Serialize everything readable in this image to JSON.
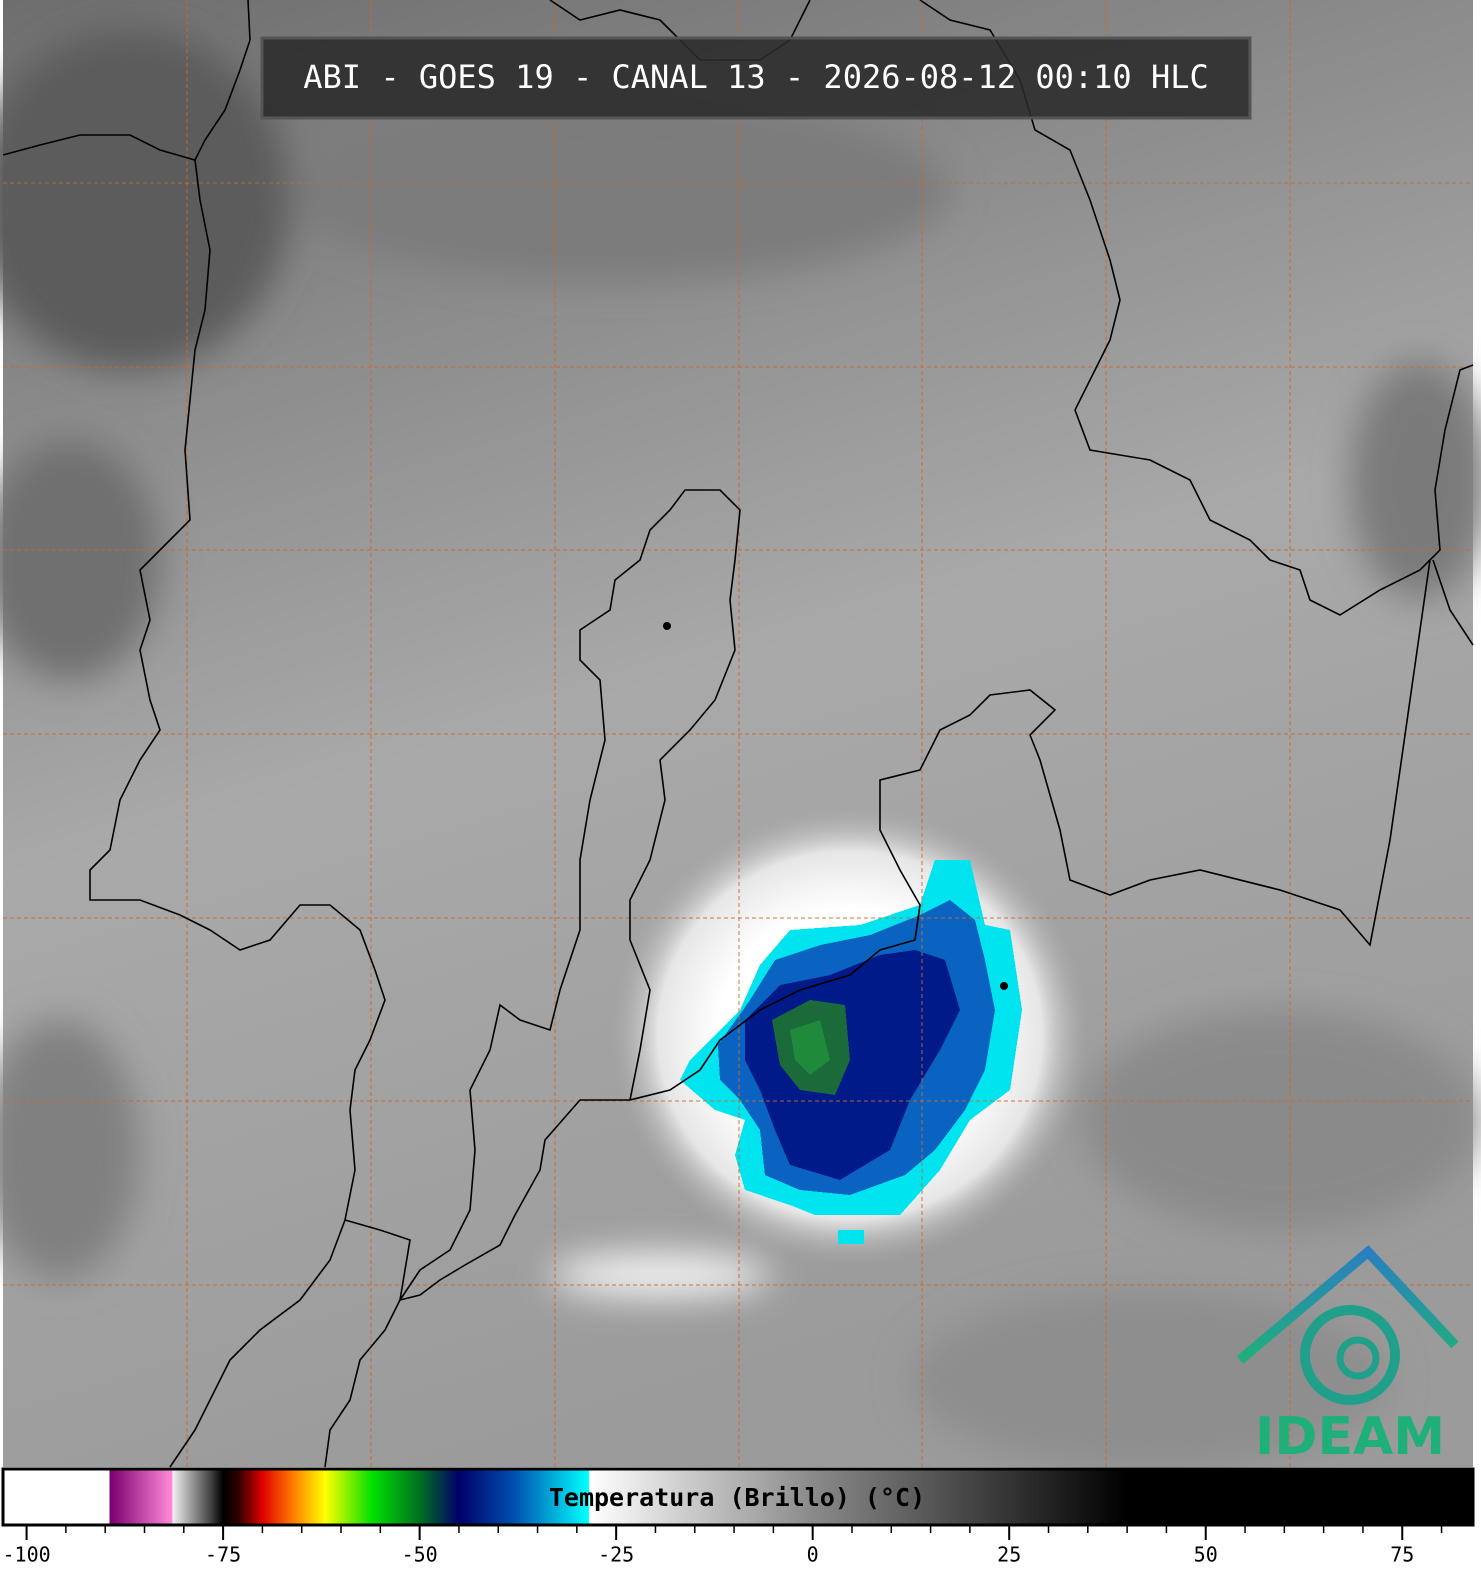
{
  "header": {
    "title": "ABI - GOES 19 - CANAL 13 - 2026-08-12 00:10 HLC"
  },
  "colorbar": {
    "label": "Temperatura (Brillo) (°C)",
    "lim": [
      -103,
      84
    ],
    "ticks": [
      -100,
      -75,
      -50,
      -25,
      0,
      25,
      50,
      75
    ],
    "minor_step": 5,
    "stops": [
      {
        "value": -103,
        "color": "#ffffff"
      },
      {
        "value": -89.5,
        "color": "#ffffff"
      },
      {
        "value": -89.4,
        "color": "#7a0070"
      },
      {
        "value": -81.5,
        "color": "#ff8ad8"
      },
      {
        "value": -81.4,
        "color": "#f0f0f0"
      },
      {
        "value": -76.5,
        "color": "#404040"
      },
      {
        "value": -75,
        "color": "#000000"
      },
      {
        "value": -73,
        "color": "#300000"
      },
      {
        "value": -70,
        "color": "#e00000"
      },
      {
        "value": -66,
        "color": "#ff8000"
      },
      {
        "value": -62,
        "color": "#ffff00"
      },
      {
        "value": -56,
        "color": "#00e000"
      },
      {
        "value": -50,
        "color": "#007020"
      },
      {
        "value": -45,
        "color": "#00006a"
      },
      {
        "value": -38,
        "color": "#0050b0"
      },
      {
        "value": -28.5,
        "color": "#00ffff"
      },
      {
        "value": -28.4,
        "color": "#ffffff"
      },
      {
        "value": 0,
        "color": "#8a8a8a"
      },
      {
        "value": 40,
        "color": "#000000"
      },
      {
        "value": 84,
        "color": "#000000"
      }
    ]
  },
  "logo": {
    "text": "IDEAM"
  }
}
